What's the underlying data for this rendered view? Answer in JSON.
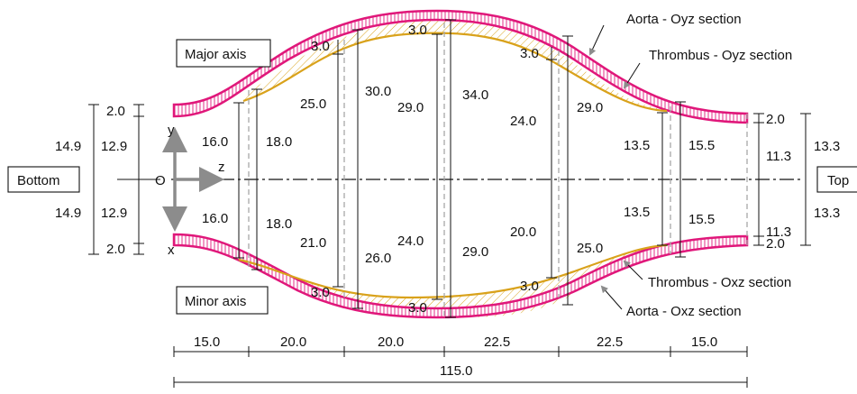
{
  "boxes": {
    "major_axis": "Major axis",
    "minor_axis": "Minor axis",
    "bottom": "Bottom",
    "top": "Top"
  },
  "axes": {
    "origin": "O",
    "y": "y",
    "z": "z",
    "x": "x"
  },
  "callouts": {
    "aorta_oyz": "Aorta - Oyz section",
    "thrombus_oyz": "Thrombus - Oyz section",
    "thrombus_oxz": "Thrombus - Oxz section",
    "aorta_oxz": "Aorta - Oxz section"
  },
  "left_dims": {
    "wall_top": "2.0",
    "wall_bottom": "2.0",
    "inner_top": "12.9",
    "inner_bottom": "12.9",
    "outer_top": "14.9",
    "outer_bottom": "14.9"
  },
  "right_dims": {
    "wall_top": "2.0",
    "wall_bottom": "2.0",
    "inner_top": "11.3",
    "inner_bottom": "11.3",
    "outer_top": "13.3",
    "outer_bottom": "13.3"
  },
  "upper_dims": {
    "s1_a": "16.0",
    "s1_b": "18.0",
    "s2_a": "25.0",
    "s2_b": "30.0",
    "s2_t": "3.0",
    "s3_a": "29.0",
    "s3_b": "34.0",
    "s3_t": "3.0",
    "s4_a": "24.0",
    "s4_b": "29.0",
    "s4_t": "3.0",
    "s5_a": "13.5",
    "s5_b": "15.5"
  },
  "lower_dims": {
    "s1_a": "16.0",
    "s1_b": "18.0",
    "s2_a": "21.0",
    "s2_b": "26.0",
    "s2_t": "3.0",
    "s3_a": "24.0",
    "s3_b": "29.0",
    "s3_t": "3.0",
    "s4_a": "20.0",
    "s4_b": "25.0",
    "s4_t": "3.0",
    "s5_a": "13.5",
    "s5_b": "15.5"
  },
  "segments": [
    "15.0",
    "20.0",
    "20.0",
    "22.5",
    "22.5",
    "15.0"
  ],
  "total_length": "115.0",
  "colors": {
    "aorta": "#e0177a",
    "thrombus": "#d9a21b",
    "axis_arrow": "#8c8c8c"
  }
}
